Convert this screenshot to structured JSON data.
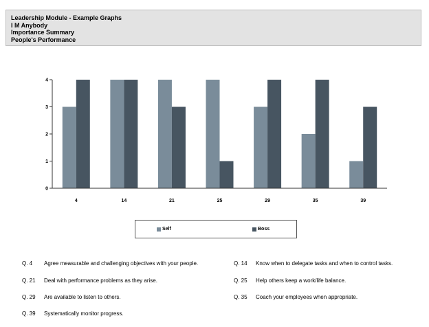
{
  "header": {
    "title": "Leadership Module - Example Graphs",
    "name": "I M Anybody",
    "summary": "Importance Summary",
    "subtitle": "People's Performance"
  },
  "colors": {
    "self": "#7a8c9a",
    "boss": "#475561",
    "axis": "#333333"
  },
  "chart_data": {
    "type": "bar",
    "categories": [
      "4",
      "14",
      "21",
      "25",
      "29",
      "35",
      "39"
    ],
    "series": [
      {
        "name": "Self",
        "values": [
          3,
          4,
          4,
          4,
          3,
          2,
          1
        ]
      },
      {
        "name": "Boss",
        "values": [
          4,
          4,
          3,
          1,
          4,
          4,
          3
        ]
      }
    ],
    "ylim": [
      0,
      4
    ],
    "yticks": [
      "0",
      "1",
      "2",
      "3",
      "4"
    ],
    "grid": false,
    "legend": "bottom"
  },
  "questions": [
    {
      "num": "Q. 4",
      "text": "Agree measurable and challenging objectives with your people."
    },
    {
      "num": "Q. 14",
      "text": "Know when to delegate tasks and when to control tasks."
    },
    {
      "num": "Q. 21",
      "text": "Deal with performance problems as they arise."
    },
    {
      "num": "Q. 25",
      "text": "Help others keep a work/life balance."
    },
    {
      "num": "Q. 29",
      "text": "Are available to listen to others."
    },
    {
      "num": "Q. 35",
      "text": "Coach your employees when appropriate."
    },
    {
      "num": "Q. 39",
      "text": "Systematically monitor progress."
    }
  ]
}
